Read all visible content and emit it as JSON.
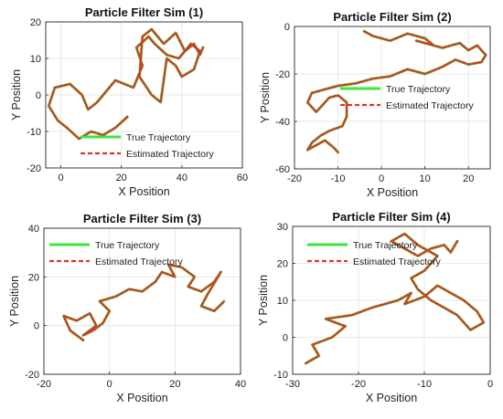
{
  "chart_data": [
    {
      "type": "line",
      "title": "Particle Filter Sim (1)",
      "xlabel": "X Position",
      "ylabel": "Y Position",
      "xlim": [
        -5,
        60
      ],
      "ylim": [
        -20,
        20
      ],
      "xticks": [
        0,
        20,
        40,
        60
      ],
      "yticks": [
        -20,
        -10,
        0,
        10,
        20
      ],
      "grid": true,
      "legend": {
        "placement": "bottom-center"
      },
      "series": [
        {
          "name": "True Trajectory",
          "color": "#3ae73a",
          "style": "solid",
          "x": [
            22,
            18,
            14,
            10,
            6,
            2,
            -1,
            -4,
            -2,
            3,
            7,
            9,
            12,
            18,
            24,
            27,
            25,
            29,
            31,
            35,
            39,
            43,
            46,
            44,
            40,
            38,
            35,
            34,
            33,
            30,
            26,
            27,
            30,
            34,
            38,
            41,
            44,
            46,
            47
          ],
          "y": [
            -6,
            -9,
            -11,
            -10,
            -12,
            -9,
            -7,
            -3,
            2,
            3,
            0,
            -4,
            -2,
            4,
            2,
            8,
            13,
            16,
            14,
            11,
            10,
            14,
            12,
            7,
            5,
            8,
            10,
            4,
            -2,
            0,
            5,
            16,
            18,
            14,
            17,
            12,
            14,
            11,
            13
          ]
        },
        {
          "name": "Estimated Trajectory",
          "color": "#d9362e",
          "style": "dashed",
          "x": [
            22,
            18,
            14,
            10,
            6,
            2,
            -1,
            -4,
            -2,
            3,
            7,
            9,
            12,
            18,
            24,
            27,
            25,
            29,
            31,
            35,
            39,
            43,
            46,
            44,
            40,
            38,
            35,
            34,
            33,
            30,
            26,
            27,
            30,
            34,
            38,
            41,
            44,
            46,
            47
          ],
          "y": [
            -6,
            -9,
            -11,
            -10,
            -12,
            -9,
            -7,
            -3,
            2,
            3,
            0,
            -4,
            -2,
            4,
            2,
            8,
            13,
            16,
            14,
            11,
            10,
            14,
            12,
            7,
            5,
            8,
            10,
            4,
            -2,
            0,
            5,
            16,
            18,
            14,
            17,
            12,
            14,
            11,
            13
          ]
        }
      ]
    },
    {
      "type": "line",
      "title": "Particle Filter Sim (2)",
      "xlabel": "X Position",
      "ylabel": "Y Position",
      "xlim": [
        -20,
        25
      ],
      "ylim": [
        -60,
        0
      ],
      "xticks": [
        -20,
        -10,
        0,
        10,
        20
      ],
      "yticks": [
        -60,
        -40,
        -20,
        0
      ],
      "grid": true,
      "legend": {
        "placement": "center-right"
      },
      "series": [
        {
          "name": "True Trajectory",
          "color": "#3ae73a",
          "style": "solid",
          "x": [
            -4,
            -2,
            2,
            6,
            10,
            12,
            8,
            14,
            18,
            20,
            22,
            24,
            23,
            20,
            17,
            14,
            10,
            6,
            2,
            -2,
            -6,
            -10,
            -14,
            -16,
            -17,
            -15,
            -12,
            -10,
            -8,
            -8,
            -9,
            -12,
            -14,
            -16,
            -17,
            -15,
            -13,
            -11,
            -10
          ],
          "y": [
            -2,
            -4,
            -6,
            -3,
            -5,
            -8,
            -6,
            -9,
            -7,
            -10,
            -8,
            -12,
            -15,
            -16,
            -14,
            -17,
            -20,
            -18,
            -21,
            -22,
            -24,
            -25,
            -27,
            -28,
            -32,
            -36,
            -30,
            -29,
            -32,
            -38,
            -42,
            -44,
            -46,
            -49,
            -52,
            -50,
            -48,
            -51,
            -53
          ]
        },
        {
          "name": "Estimated Trajectory",
          "color": "#d9362e",
          "style": "dashed",
          "x": [
            -4,
            -2,
            2,
            6,
            10,
            12,
            8,
            14,
            18,
            20,
            22,
            24,
            23,
            20,
            17,
            14,
            10,
            6,
            2,
            -2,
            -6,
            -10,
            -14,
            -16,
            -17,
            -15,
            -12,
            -10,
            -8,
            -8,
            -9,
            -12,
            -14,
            -16,
            -17,
            -15,
            -13,
            -11,
            -10
          ],
          "y": [
            -2,
            -4,
            -6,
            -3,
            -5,
            -8,
            -6,
            -9,
            -7,
            -10,
            -8,
            -12,
            -15,
            -16,
            -14,
            -17,
            -20,
            -18,
            -21,
            -22,
            -24,
            -25,
            -27,
            -28,
            -32,
            -36,
            -30,
            -29,
            -32,
            -38,
            -42,
            -44,
            -46,
            -49,
            -52,
            -50,
            -48,
            -51,
            -53
          ]
        }
      ]
    },
    {
      "type": "line",
      "title": "Particle Filter Sim (3)",
      "xlabel": "X Position",
      "ylabel": "Y Position",
      "xlim": [
        -20,
        40
      ],
      "ylim": [
        -20,
        40
      ],
      "xticks": [
        -20,
        0,
        20,
        40
      ],
      "yticks": [
        -20,
        0,
        20,
        40
      ],
      "grid": true,
      "legend": {
        "placement": "top-left"
      },
      "series": [
        {
          "name": "True Trajectory",
          "color": "#3ae73a",
          "style": "solid",
          "x": [
            -8,
            -12,
            -14,
            -10,
            -6,
            -4,
            -8,
            -5,
            -2,
            0,
            -3,
            2,
            6,
            10,
            14,
            16,
            20,
            18,
            22,
            26,
            24,
            28,
            32,
            34,
            30,
            28,
            32,
            35
          ],
          "y": [
            -6,
            -2,
            4,
            2,
            5,
            0,
            -4,
            -2,
            1,
            6,
            10,
            12,
            15,
            14,
            18,
            22,
            20,
            25,
            24,
            20,
            16,
            14,
            18,
            22,
            13,
            8,
            6,
            10
          ]
        },
        {
          "name": "Estimated Trajectory",
          "color": "#d9362e",
          "style": "dashed",
          "x": [
            -8,
            -12,
            -14,
            -10,
            -6,
            -4,
            -8,
            -5,
            -2,
            0,
            -3,
            2,
            6,
            10,
            14,
            16,
            20,
            18,
            22,
            26,
            24,
            28,
            32,
            34,
            30,
            28,
            32,
            35
          ],
          "y": [
            -6,
            -2,
            4,
            2,
            5,
            0,
            -4,
            -2,
            1,
            6,
            10,
            12,
            15,
            14,
            18,
            22,
            20,
            25,
            24,
            20,
            16,
            14,
            18,
            22,
            13,
            8,
            6,
            10
          ]
        }
      ]
    },
    {
      "type": "line",
      "title": "Particle Filter Sim (4)",
      "xlabel": "X Position",
      "ylabel": "Y Position",
      "xlim": [
        -30,
        0
      ],
      "ylim": [
        -10,
        30
      ],
      "xticks": [
        -30,
        -20,
        -10,
        0
      ],
      "yticks": [
        -10,
        0,
        10,
        20,
        30
      ],
      "grid": true,
      "legend": {
        "placement": "top-left"
      },
      "series": [
        {
          "name": "True Trajectory",
          "color": "#3ae73a",
          "style": "solid",
          "x": [
            -28,
            -26,
            -27,
            -24,
            -22,
            -25,
            -21,
            -18,
            -16,
            -14,
            -12,
            -13,
            -10,
            -8,
            -6,
            -4,
            -2,
            -1,
            -3,
            -5,
            -7,
            -9,
            -11,
            -12,
            -10,
            -8,
            -11,
            -13,
            -15,
            -13,
            -11,
            -9,
            -7,
            -6,
            -5
          ],
          "y": [
            -7,
            -5,
            -2,
            0,
            3,
            5,
            6,
            8,
            9,
            10,
            12,
            9,
            11,
            14,
            12,
            10,
            7,
            4,
            2,
            6,
            8,
            10,
            13,
            16,
            18,
            22,
            25,
            28,
            26,
            24,
            22,
            24,
            25,
            23,
            26
          ]
        },
        {
          "name": "Estimated Trajectory",
          "color": "#d9362e",
          "style": "dashed",
          "x": [
            -28,
            -26,
            -27,
            -24,
            -22,
            -25,
            -21,
            -18,
            -16,
            -14,
            -12,
            -13,
            -10,
            -8,
            -6,
            -4,
            -2,
            -1,
            -3,
            -5,
            -7,
            -9,
            -11,
            -12,
            -10,
            -8,
            -11,
            -13,
            -15,
            -13,
            -11,
            -9,
            -7,
            -6,
            -5
          ],
          "y": [
            -7,
            -5,
            -2,
            0,
            3,
            5,
            6,
            8,
            9,
            10,
            12,
            9,
            11,
            14,
            12,
            10,
            7,
            4,
            2,
            6,
            8,
            10,
            13,
            16,
            18,
            22,
            25,
            28,
            26,
            24,
            22,
            24,
            25,
            23,
            26
          ]
        }
      ]
    }
  ]
}
